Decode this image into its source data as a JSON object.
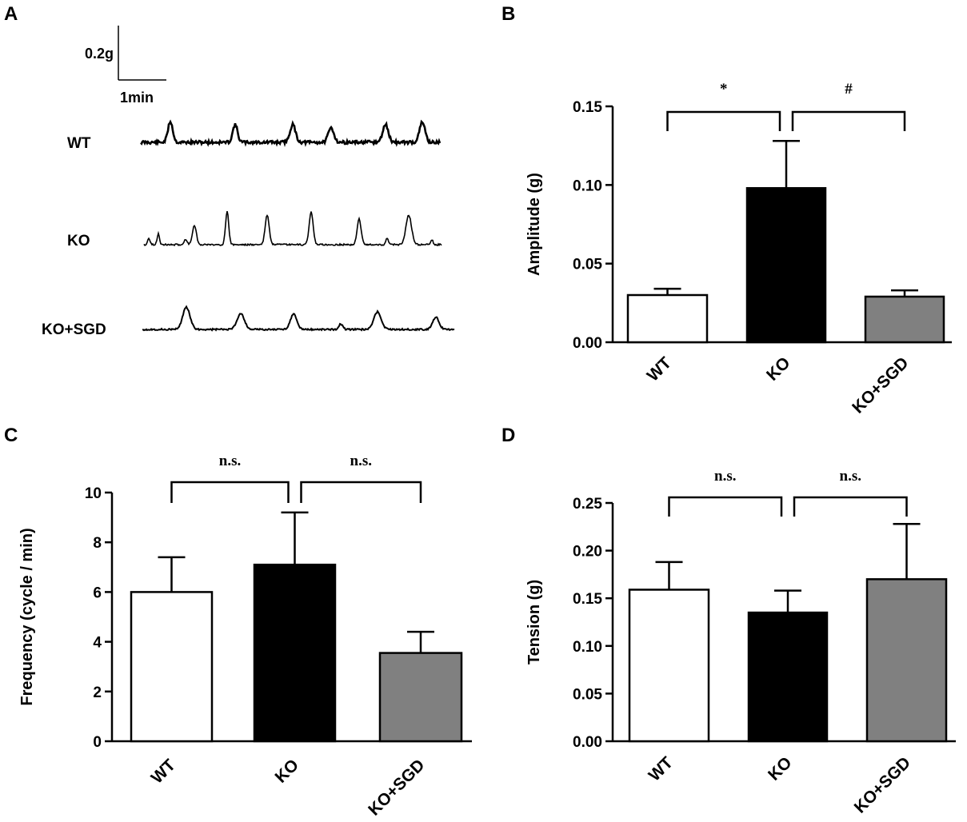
{
  "panels": {
    "A": "A",
    "B": "B",
    "C": "C",
    "D": "D"
  },
  "traces": {
    "scale_amplitude": "0.2g",
    "scale_time": "1min",
    "labels": [
      "WT",
      "KO",
      "KO+SGD"
    ]
  },
  "chart_data": [
    {
      "id": "B",
      "type": "bar",
      "categories": [
        "WT",
        "KO",
        "KO+SGD"
      ],
      "values": [
        0.03,
        0.098,
        0.029
      ],
      "errors": [
        0.004,
        0.03,
        0.004
      ],
      "colors": [
        "#ffffff",
        "#000000",
        "#808080"
      ],
      "ylabel": "Amplitude (g)",
      "ylim": [
        0,
        0.15
      ],
      "yticks": [
        "0.00",
        "0.05",
        "0.10",
        "0.15"
      ],
      "significance": [
        "*",
        "#"
      ]
    },
    {
      "id": "C",
      "type": "bar",
      "categories": [
        "WT",
        "KO",
        "KO+SGD"
      ],
      "values": [
        6.0,
        7.1,
        3.55
      ],
      "errors": [
        1.4,
        2.1,
        0.85
      ],
      "colors": [
        "#ffffff",
        "#000000",
        "#808080"
      ],
      "ylabel": "Frequency (cycle / min)",
      "ylim": [
        0,
        10
      ],
      "yticks": [
        "0",
        "2",
        "4",
        "6",
        "8",
        "10"
      ],
      "significance": [
        "n.s.",
        "n.s."
      ]
    },
    {
      "id": "D",
      "type": "bar",
      "categories": [
        "WT",
        "KO",
        "KO+SGD"
      ],
      "values": [
        0.159,
        0.135,
        0.17
      ],
      "errors": [
        0.029,
        0.023,
        0.058
      ],
      "colors": [
        "#ffffff",
        "#000000",
        "#808080"
      ],
      "ylabel": "Tension (g)",
      "ylim": [
        0,
        0.25
      ],
      "yticks": [
        "0.00",
        "0.05",
        "0.10",
        "0.15",
        "0.20",
        "0.25"
      ],
      "significance": [
        "n.s.",
        "n.s."
      ]
    }
  ]
}
